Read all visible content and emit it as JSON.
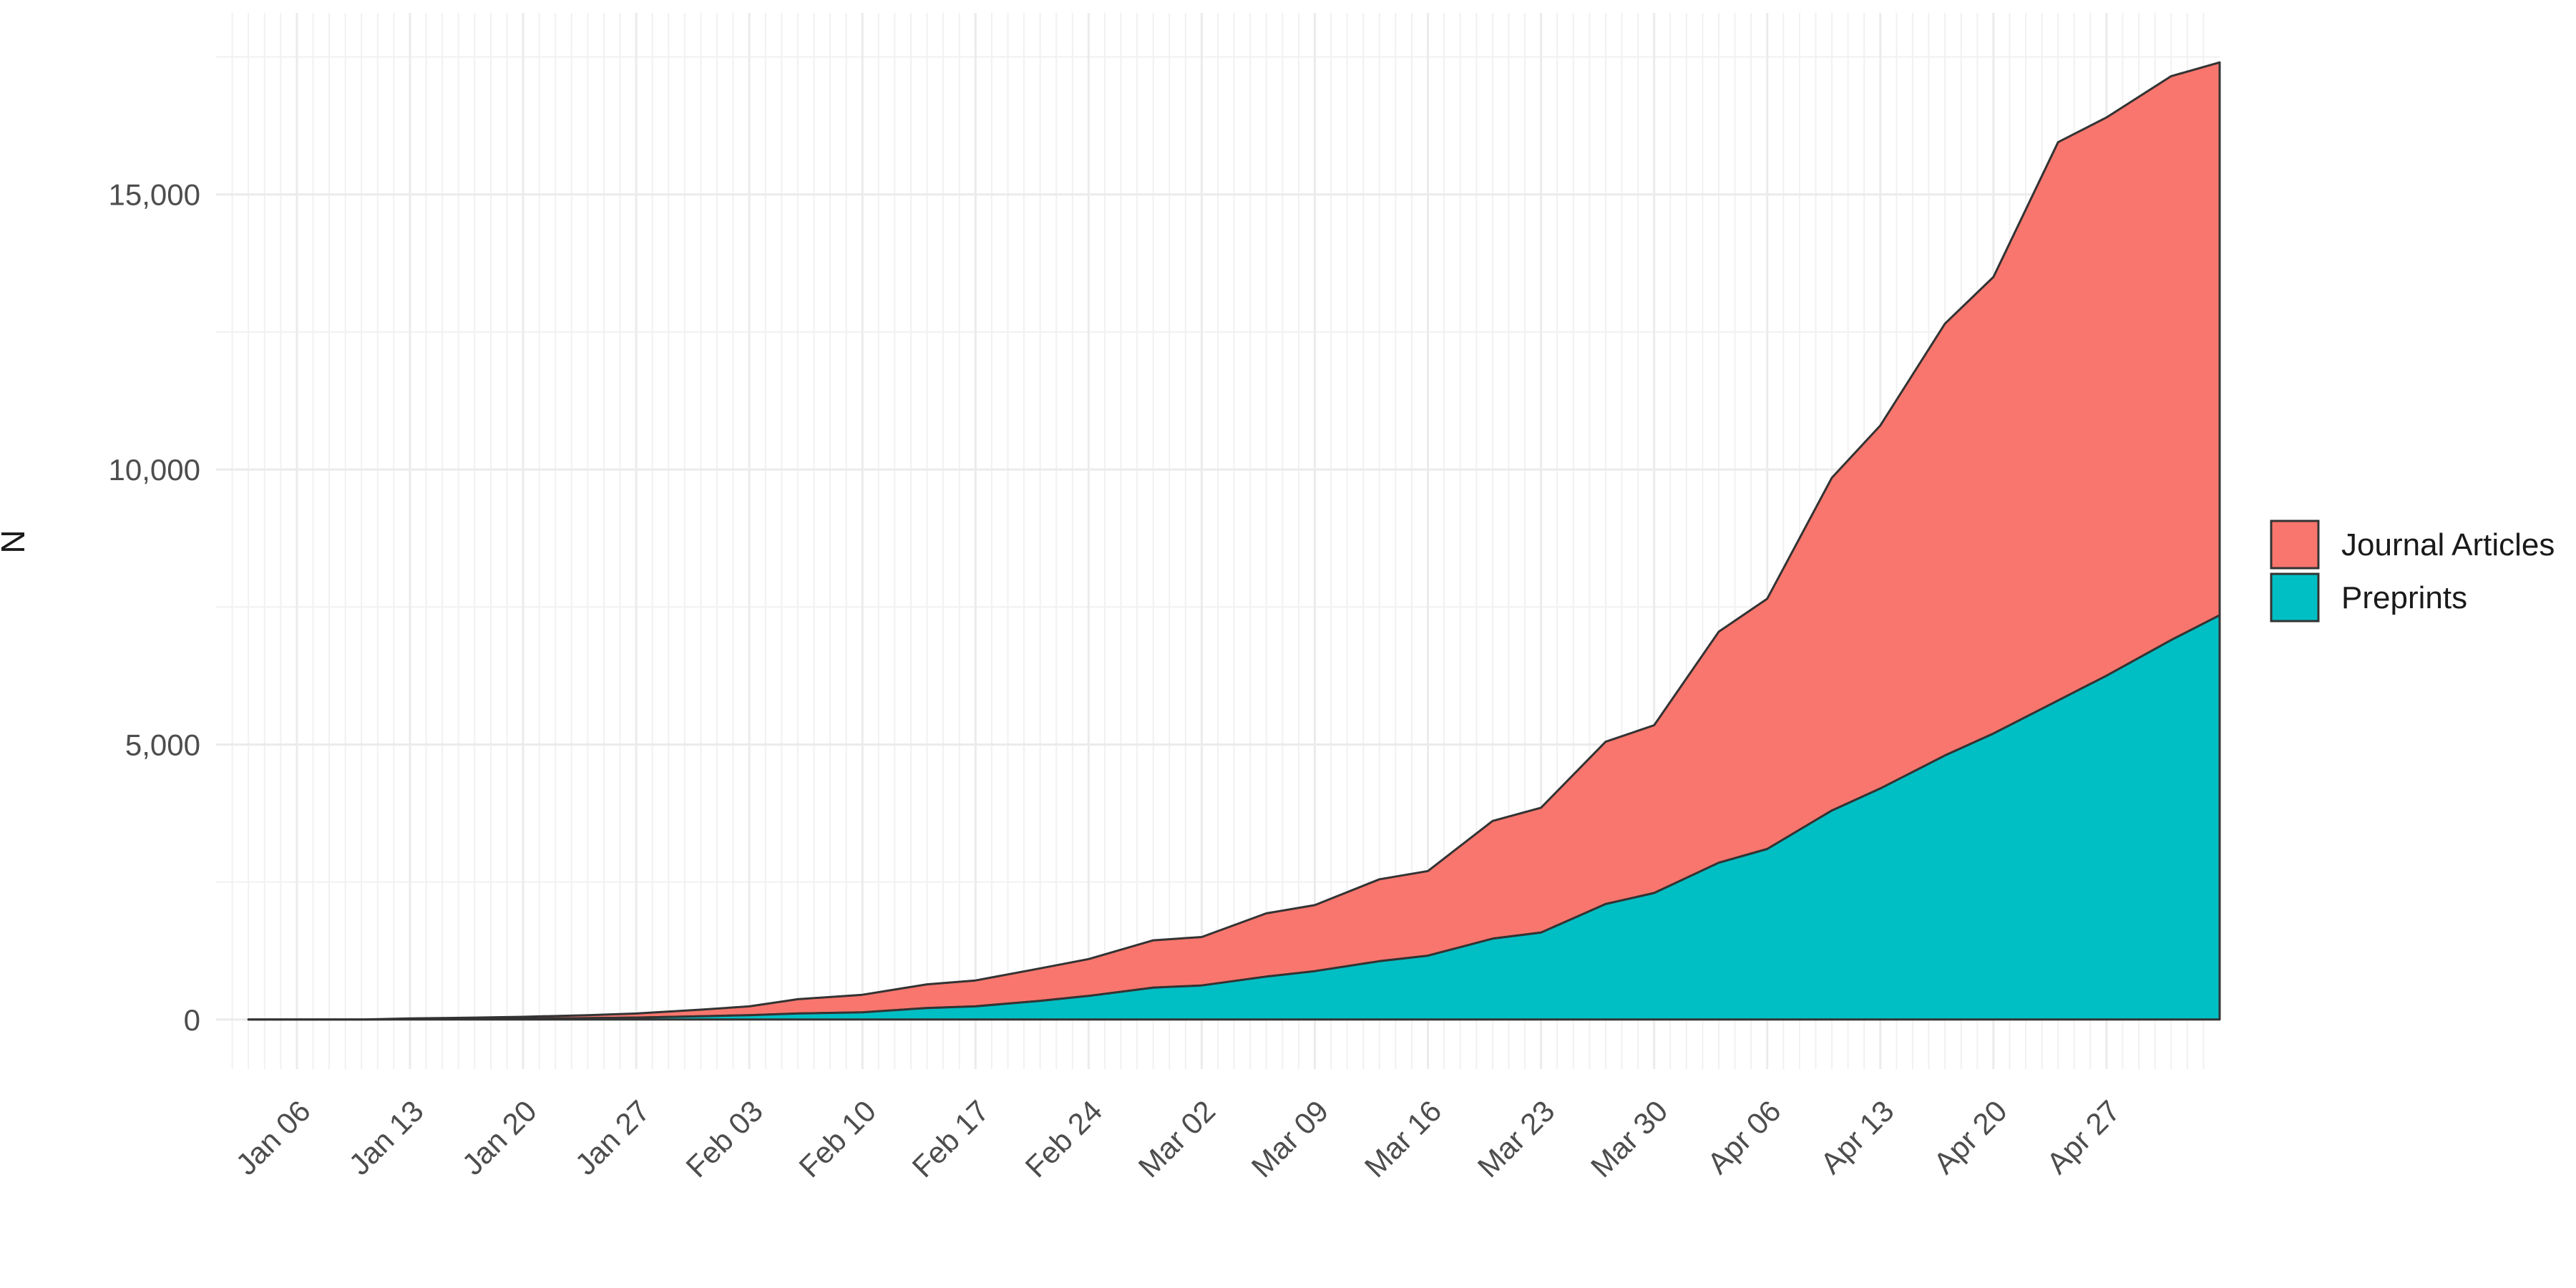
{
  "chart_data": {
    "type": "area",
    "stacked": true,
    "title": "",
    "xlabel": "",
    "ylabel": "N",
    "x_range": [
      "2020-01-01",
      "2020-05-04"
    ],
    "ylim": [
      -900,
      18300
    ],
    "x_ticks": [
      {
        "date": "2020-01-06",
        "label": "Jan 06"
      },
      {
        "date": "2020-01-13",
        "label": "Jan 13"
      },
      {
        "date": "2020-01-20",
        "label": "Jan 20"
      },
      {
        "date": "2020-01-27",
        "label": "Jan 27"
      },
      {
        "date": "2020-02-03",
        "label": "Feb 03"
      },
      {
        "date": "2020-02-10",
        "label": "Feb 10"
      },
      {
        "date": "2020-02-17",
        "label": "Feb 17"
      },
      {
        "date": "2020-02-24",
        "label": "Feb 24"
      },
      {
        "date": "2020-03-02",
        "label": "Mar 02"
      },
      {
        "date": "2020-03-09",
        "label": "Mar 09"
      },
      {
        "date": "2020-03-16",
        "label": "Mar 16"
      },
      {
        "date": "2020-03-23",
        "label": "Mar 23"
      },
      {
        "date": "2020-03-30",
        "label": "Mar 30"
      },
      {
        "date": "2020-04-06",
        "label": "Apr 06"
      },
      {
        "date": "2020-04-13",
        "label": "Apr 13"
      },
      {
        "date": "2020-04-20",
        "label": "Apr 20"
      },
      {
        "date": "2020-04-27",
        "label": "Apr 27"
      }
    ],
    "y_ticks": [
      {
        "value": 0,
        "label": "0"
      },
      {
        "value": 5000,
        "label": "5,000"
      },
      {
        "value": 10000,
        "label": "10,000"
      },
      {
        "value": 15000,
        "label": "15,000"
      }
    ],
    "grid": true,
    "legend_position": "right",
    "colors": {
      "Journal Articles": "#F8766D",
      "Preprints": "#00BFC4",
      "outline": "#333333"
    },
    "x": [
      "2020-01-03",
      "2020-01-10",
      "2020-01-13",
      "2020-01-17",
      "2020-01-20",
      "2020-01-24",
      "2020-01-27",
      "2020-01-31",
      "2020-02-03",
      "2020-02-06",
      "2020-02-10",
      "2020-02-14",
      "2020-02-17",
      "2020-02-21",
      "2020-02-24",
      "2020-02-28",
      "2020-03-02",
      "2020-03-06",
      "2020-03-09",
      "2020-03-13",
      "2020-03-16",
      "2020-03-20",
      "2020-03-23",
      "2020-03-27",
      "2020-03-30",
      "2020-04-03",
      "2020-04-06",
      "2020-04-10",
      "2020-04-13",
      "2020-04-17",
      "2020-04-20",
      "2020-04-24",
      "2020-04-27",
      "2020-05-01",
      "2020-05-04"
    ],
    "series": [
      {
        "name": "Preprints",
        "values": [
          0,
          0,
          5,
          10,
          15,
          25,
          35,
          60,
          80,
          110,
          130,
          210,
          240,
          340,
          430,
          580,
          620,
          780,
          880,
          1060,
          1160,
          1470,
          1580,
          2100,
          2300,
          2850,
          3100,
          3800,
          4200,
          4800,
          5200,
          5800,
          6250,
          6900,
          7350
        ]
      },
      {
        "name": "Journal Articles",
        "values": [
          0,
          0,
          15,
          25,
          35,
          55,
          75,
          120,
          160,
          260,
          320,
          430,
          470,
          590,
          670,
          860,
          880,
          1150,
          1200,
          1490,
          1540,
          2140,
          2270,
          2950,
          3050,
          4200,
          4550,
          6050,
          6600,
          7850,
          8300,
          10150,
          10150,
          10250,
          10050
        ]
      }
    ]
  }
}
